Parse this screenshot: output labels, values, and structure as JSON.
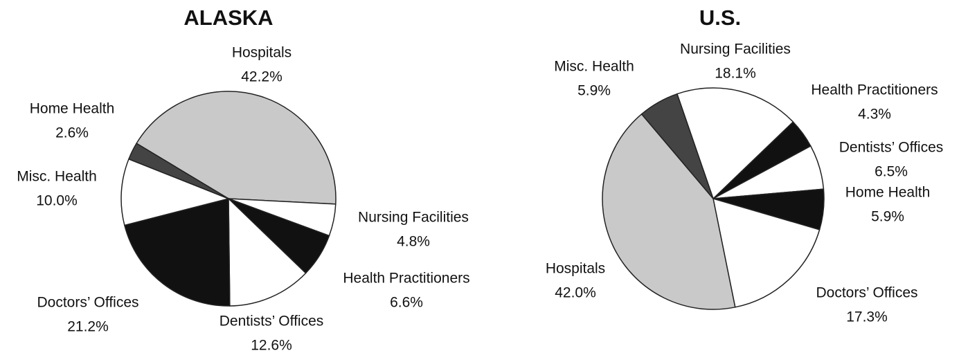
{
  "chart_data": [
    {
      "type": "pie",
      "title": "ALASKA",
      "categories": [
        "Hospitals",
        "Nursing Facilities",
        "Health Practitioners",
        "Dentists’ Offices",
        "Doctors’ Offices",
        "Misc. Health",
        "Home Health"
      ],
      "values": [
        42.2,
        4.8,
        6.6,
        12.6,
        21.2,
        10.0,
        2.6
      ],
      "value_labels": [
        "42.2%",
        "4.8%",
        "6.6%",
        "12.6%",
        "21.2%",
        "10.0%",
        "2.6%"
      ],
      "colors": [
        "#c9c9c9",
        "#ffffff",
        "#111111",
        "#ffffff",
        "#111111",
        "#ffffff",
        "#444444"
      ]
    },
    {
      "type": "pie",
      "title": "U.S.",
      "categories": [
        "Nursing Facilities",
        "Health Practitioners",
        "Dentists’ Offices",
        "Home Health",
        "Doctors’ Offices",
        "Hospitals",
        "Misc. Health"
      ],
      "values": [
        18.1,
        4.3,
        6.5,
        5.9,
        17.3,
        42.0,
        5.9
      ],
      "value_labels": [
        "18.1%",
        "4.3%",
        "6.5%",
        "5.9%",
        "17.3%",
        "42.0%",
        "5.9%"
      ],
      "colors": [
        "#ffffff",
        "#111111",
        "#ffffff",
        "#111111",
        "#ffffff",
        "#c9c9c9",
        "#444444"
      ]
    }
  ]
}
